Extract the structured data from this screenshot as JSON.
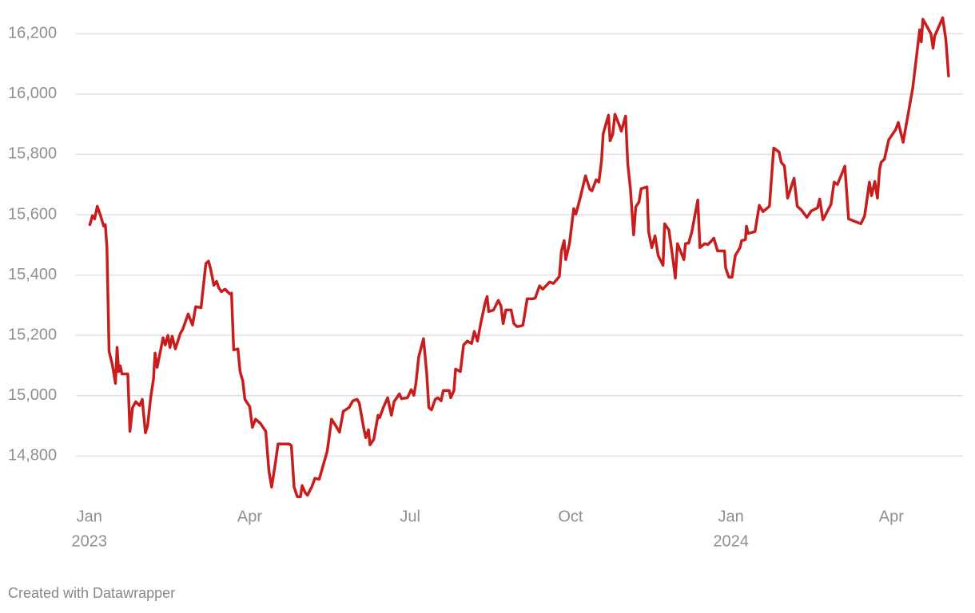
{
  "chart_data": {
    "type": "line",
    "footer": "Created with Datawrapper",
    "xlim": [
      -0.25,
      16.34
    ],
    "ylim": [
      14650,
      16280
    ],
    "grid": true,
    "xticks": [
      {
        "value": 0,
        "label": "Jan"
      },
      {
        "value": 3,
        "label": "Apr"
      },
      {
        "value": 6,
        "label": "Jul"
      },
      {
        "value": 9,
        "label": "Oct"
      },
      {
        "value": 12,
        "label": "Jan"
      },
      {
        "value": 15,
        "label": "Apr"
      }
    ],
    "xtick_years": [
      {
        "value": 0,
        "label": "2023"
      },
      {
        "value": 12,
        "label": "2024"
      }
    ],
    "yticks": [
      {
        "value": 14800,
        "label": "14,800"
      },
      {
        "value": 15000,
        "label": "15,000"
      },
      {
        "value": 15200,
        "label": "15,200"
      },
      {
        "value": 15400,
        "label": "15,400"
      },
      {
        "value": 15600,
        "label": "15,600"
      },
      {
        "value": 15800,
        "label": "15,800"
      },
      {
        "value": 16000,
        "label": "16,000"
      },
      {
        "value": 16200,
        "label": "16,200"
      }
    ],
    "x": [
      0.01,
      0.06,
      0.1,
      0.15,
      0.21,
      0.27,
      0.3,
      0.33,
      0.37,
      0.43,
      0.49,
      0.52,
      0.55,
      0.58,
      0.61,
      0.72,
      0.76,
      0.81,
      0.87,
      0.94,
      0.99,
      1.05,
      1.09,
      1.15,
      1.2,
      1.23,
      1.27,
      1.38,
      1.42,
      1.47,
      1.51,
      1.55,
      1.61,
      1.7,
      1.75,
      1.85,
      1.93,
      1.99,
      2.09,
      2.18,
      2.23,
      2.27,
      2.33,
      2.38,
      2.42,
      2.47,
      2.54,
      2.63,
      2.66,
      2.7,
      2.78,
      2.82,
      2.87,
      2.91,
      3.0,
      3.05,
      3.11,
      3.2,
      3.3,
      3.36,
      3.41,
      3.48,
      3.53,
      3.74,
      3.78,
      3.83,
      3.89,
      3.95,
      3.98,
      4.04,
      4.08,
      4.16,
      4.22,
      4.3,
      4.45,
      4.48,
      4.53,
      4.6,
      4.68,
      4.75,
      4.86,
      4.93,
      5.01,
      5.05,
      5.13,
      5.17,
      5.22,
      5.25,
      5.32,
      5.4,
      5.43,
      5.5,
      5.58,
      5.65,
      5.7,
      5.8,
      5.84,
      5.95,
      6.02,
      6.07,
      6.11,
      6.16,
      6.25,
      6.31,
      6.35,
      6.4,
      6.47,
      6.52,
      6.58,
      6.62,
      6.73,
      6.76,
      6.82,
      6.85,
      6.94,
      7.0,
      7.07,
      7.15,
      7.2,
      7.26,
      7.32,
      7.4,
      7.44,
      7.47,
      7.56,
      7.65,
      7.7,
      7.74,
      7.79,
      7.89,
      7.94,
      8.0,
      8.07,
      8.11,
      8.19,
      8.3,
      8.34,
      8.42,
      8.48,
      8.54,
      8.61,
      8.68,
      8.79,
      8.83,
      8.88,
      8.91,
      8.98,
      9.06,
      9.1,
      9.18,
      9.28,
      9.36,
      9.4,
      9.48,
      9.53,
      9.58,
      9.61,
      9.65,
      9.71,
      9.74,
      9.79,
      9.83,
      9.91,
      9.95,
      10.03,
      10.07,
      10.12,
      10.18,
      10.22,
      10.28,
      10.32,
      10.43,
      10.46,
      10.52,
      10.58,
      10.64,
      10.73,
      10.76,
      10.84,
      10.91,
      10.96,
      11.0,
      11.12,
      11.15,
      11.21,
      11.27,
      11.33,
      11.38,
      11.42,
      11.51,
      11.57,
      11.63,
      11.68,
      11.75,
      11.88,
      11.9,
      11.96,
      12.02,
      12.08,
      12.17,
      12.2,
      12.27,
      12.29,
      12.32,
      12.45,
      12.53,
      12.6,
      12.72,
      12.8,
      12.9,
      12.94,
      13.0,
      13.06,
      13.18,
      13.24,
      13.32,
      13.42,
      13.5,
      13.62,
      13.66,
      13.72,
      13.87,
      13.93,
      13.99,
      14.07,
      14.13,
      14.2,
      14.43,
      14.5,
      14.59,
      14.63,
      14.69,
      14.74,
      14.78,
      14.81,
      14.87,
      14.95,
      15.08,
      15.13,
      15.17,
      15.22,
      15.4,
      15.53,
      15.56,
      15.59,
      15.74,
      15.78,
      15.81,
      15.96,
      16.02,
      16.07
    ],
    "series": [
      {
        "color": "#c71e1d",
        "values": [
          15567,
          15597,
          15586,
          15628,
          15597,
          15562,
          15567,
          15491,
          15147,
          15104,
          15041,
          15160,
          15080,
          15099,
          15072,
          15072,
          14882,
          14961,
          14980,
          14967,
          14988,
          14877,
          14900,
          14996,
          15054,
          15141,
          15094,
          15192,
          15168,
          15200,
          15160,
          15197,
          15155,
          15205,
          15221,
          15271,
          15234,
          15295,
          15292,
          15438,
          15446,
          15419,
          15366,
          15379,
          15358,
          15345,
          15353,
          15337,
          15340,
          15152,
          15155,
          15080,
          15049,
          14988,
          14964,
          14895,
          14922,
          14908,
          14882,
          14750,
          14697,
          14776,
          14840,
          14840,
          14834,
          14697,
          14665,
          14665,
          14702,
          14678,
          14670,
          14697,
          14726,
          14723,
          14816,
          14855,
          14922,
          14903,
          14879,
          14948,
          14961,
          14983,
          14988,
          14975,
          14895,
          14861,
          14887,
          14837,
          14855,
          14935,
          14927,
          14961,
          14993,
          14935,
          14980,
          15006,
          14990,
          14993,
          15020,
          15001,
          15043,
          15128,
          15189,
          15075,
          14961,
          14953,
          14988,
          14993,
          14983,
          15017,
          15017,
          14993,
          15017,
          15088,
          15080,
          15168,
          15181,
          15173,
          15213,
          15181,
          15239,
          15305,
          15329,
          15279,
          15284,
          15316,
          15297,
          15239,
          15284,
          15284,
          15239,
          15229,
          15231,
          15234,
          15321,
          15321,
          15324,
          15364,
          15353,
          15364,
          15377,
          15372,
          15395,
          15480,
          15514,
          15451,
          15504,
          15620,
          15602,
          15655,
          15729,
          15684,
          15679,
          15716,
          15708,
          15779,
          15867,
          15893,
          15930,
          15845,
          15867,
          15933,
          15898,
          15877,
          15927,
          15769,
          15686,
          15533,
          15626,
          15642,
          15686,
          15692,
          15544,
          15491,
          15530,
          15464,
          15432,
          15570,
          15549,
          15459,
          15390,
          15504,
          15451,
          15504,
          15506,
          15544,
          15602,
          15649,
          15491,
          15504,
          15501,
          15512,
          15522,
          15480,
          15480,
          15424,
          15393,
          15393,
          15464,
          15491,
          15514,
          15517,
          15562,
          15538,
          15544,
          15631,
          15610,
          15628,
          15821,
          15808,
          15774,
          15761,
          15655,
          15721,
          15628,
          15615,
          15591,
          15612,
          15623,
          15652,
          15583,
          15634,
          15708,
          15700,
          15734,
          15761,
          15586,
          15570,
          15596,
          15708,
          15663,
          15710,
          15655,
          15750,
          15774,
          15784,
          15848,
          15882,
          15906,
          15877,
          15840,
          16020,
          16213,
          16173,
          16248,
          16200,
          16152,
          16192,
          16253,
          16179,
          16060
        ]
      }
    ]
  }
}
